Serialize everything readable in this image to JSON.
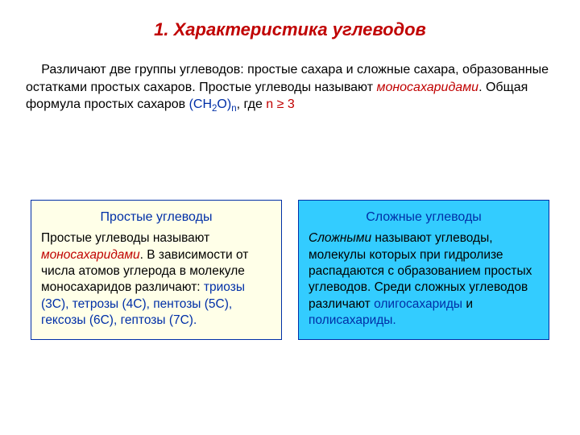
{
  "title": {
    "text": "1. Характеристика углеводов",
    "color": "#c00000"
  },
  "intro": {
    "t1": "Различают две группы углеводов: простые сахара и сложные сахара, образованные остатками простых сахаров. Простые углеводы называют ",
    "mono": "моносахаридами",
    "t2": ". Общая формула простых сахаров ",
    "formula_pre": "(CH",
    "formula_sub1": "2",
    "formula_mid": "O)",
    "formula_sub2": "n",
    "t3": ", где ",
    "cond": "n ≥ 3",
    "formula_color": "#002fa7",
    "cond_color": "#c00000"
  },
  "box_left": {
    "title": "Простые углеводы",
    "title_color": "#002fa7",
    "bg": "#ffffe8",
    "border": "#002fa7",
    "b1": "Простые углеводы называют ",
    "b2": "моносахаридами",
    "b3": ". В зависимости от числа атомов углерода в молекуле моносахаридов различают: ",
    "b4": "триозы (3С), тетрозы (4С), пентозы (5С), гексозы (6С), гептозы (7С)."
  },
  "box_right": {
    "title": "Сложные углеводы",
    "title_color": "#002fa7",
    "bg": "#33ccff",
    "border": "#002fa7",
    "b1a": "Сложными",
    "b1b": " называют углеводы, молекулы которых при гидролизе распадаются с образованием простых углеводов. Среди сложных углеводов различают ",
    "b2": "олигосахариды",
    "b3": " и ",
    "b4": "полисахариды."
  }
}
